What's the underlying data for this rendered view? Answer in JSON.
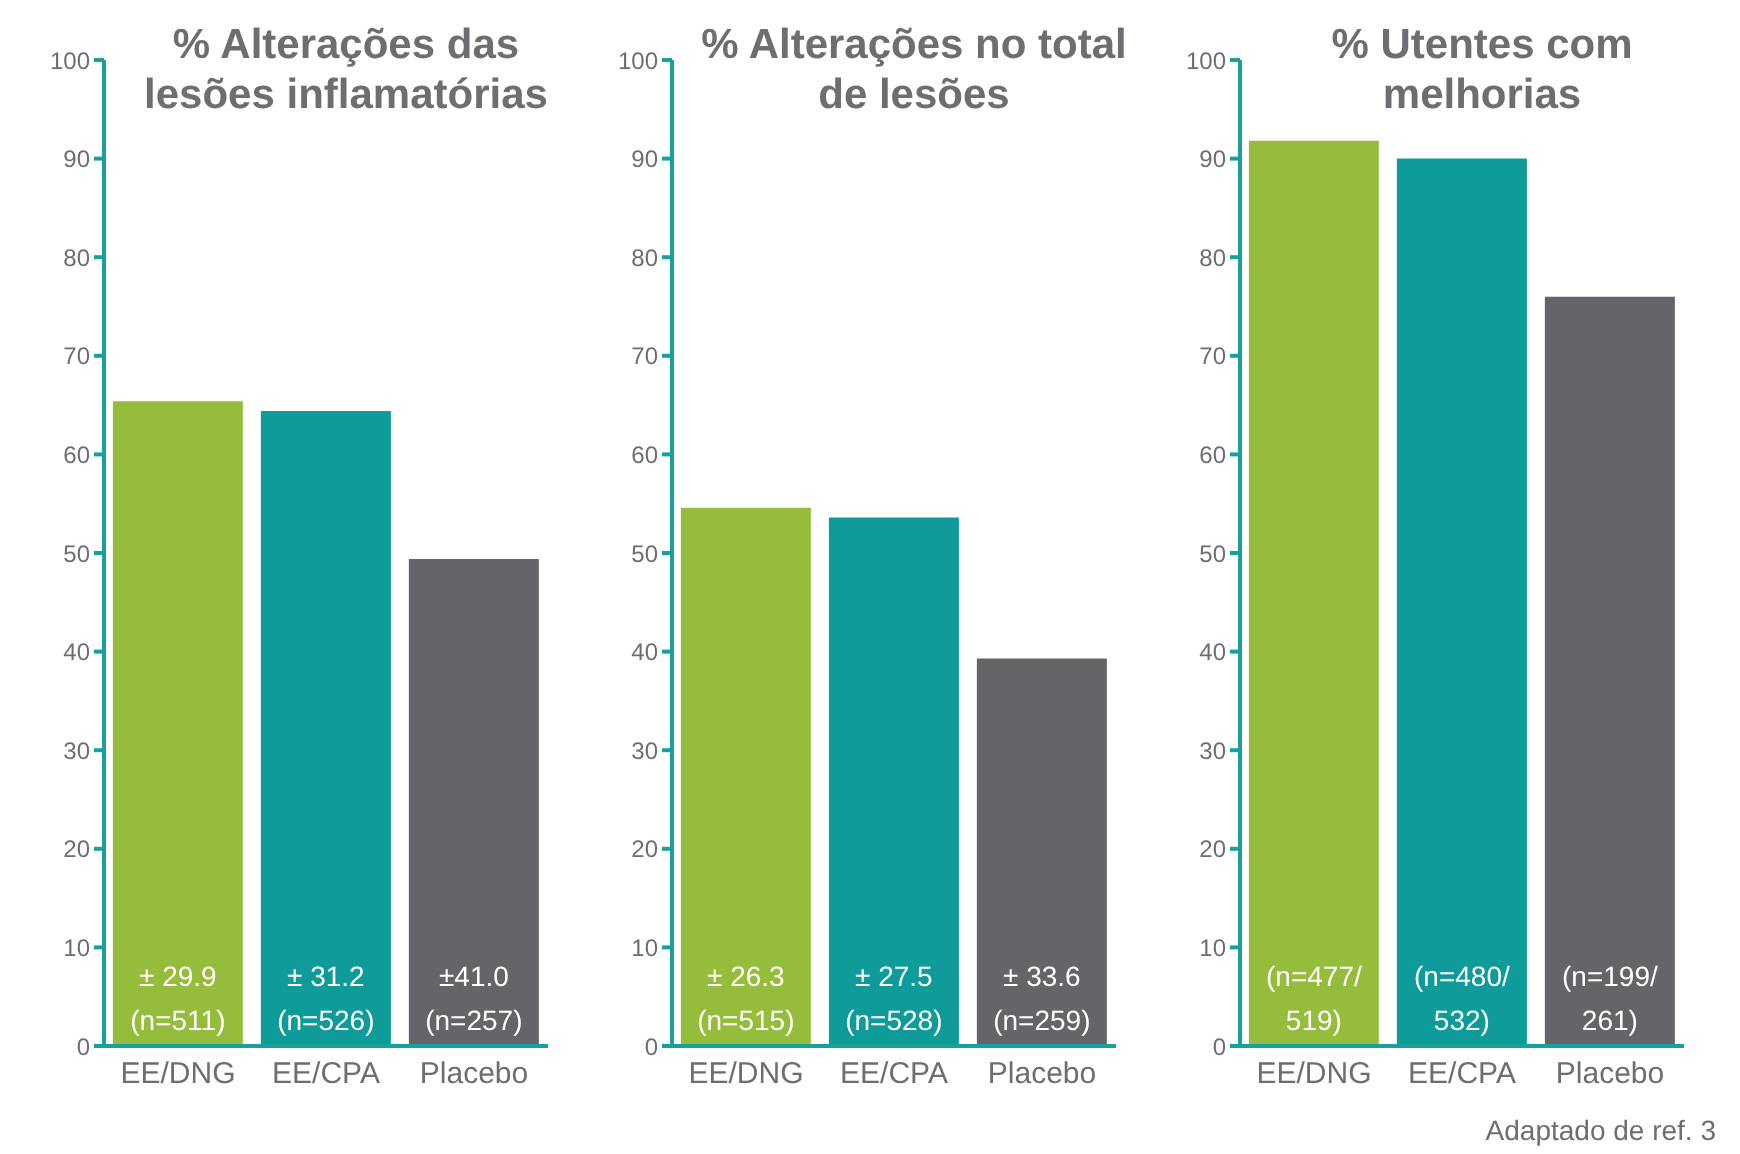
{
  "chart_data": [
    {
      "type": "bar",
      "title": "% Alterações das lesões inflamatórias",
      "categories": [
        "EE/DNG",
        "EE/CPA",
        "Placebo"
      ],
      "values": [
        65.4,
        64.4,
        49.4
      ],
      "colors": [
        "#96bc3b",
        "#0e9b9a",
        "#636569"
      ],
      "value_labels": [
        "± 29.9\n(n=511)",
        "± 31.2\n(n=526)",
        "±41.0\n(n=257)"
      ],
      "ylim": [
        0,
        100
      ],
      "yticks": [
        0,
        10,
        20,
        30,
        40,
        50,
        60,
        70,
        80,
        90,
        100
      ],
      "grid": false,
      "legend": false
    },
    {
      "type": "bar",
      "title": "% Alterações no total de lesões",
      "categories": [
        "EE/DNG",
        "EE/CPA",
        "Placebo"
      ],
      "values": [
        54.6,
        53.6,
        39.3
      ],
      "colors": [
        "#96bc3b",
        "#0e9b9a",
        "#636569"
      ],
      "value_labels": [
        "± 26.3\n(n=515)",
        "± 27.5\n(n=528)",
        "± 33.6\n(n=259)"
      ],
      "ylim": [
        0,
        100
      ],
      "yticks": [
        0,
        10,
        20,
        30,
        40,
        50,
        60,
        70,
        80,
        90,
        100
      ],
      "grid": false,
      "legend": false
    },
    {
      "type": "bar",
      "title": "% Utentes com melhorias",
      "categories": [
        "EE/DNG",
        "EE/CPA",
        "Placebo"
      ],
      "values": [
        91.8,
        90.0,
        76.0
      ],
      "colors": [
        "#96bc3b",
        "#0e9b9a",
        "#636569"
      ],
      "value_labels": [
        "(n=477/\n519)",
        "(n=480/\n532)",
        "(n=199/\n261)"
      ],
      "ylim": [
        0,
        100
      ],
      "yticks": [
        0,
        10,
        20,
        30,
        40,
        50,
        60,
        70,
        80,
        90,
        100
      ],
      "grid": false,
      "legend": false,
      "annotations": [
        "Adaptado de ref. 3"
      ]
    }
  ]
}
